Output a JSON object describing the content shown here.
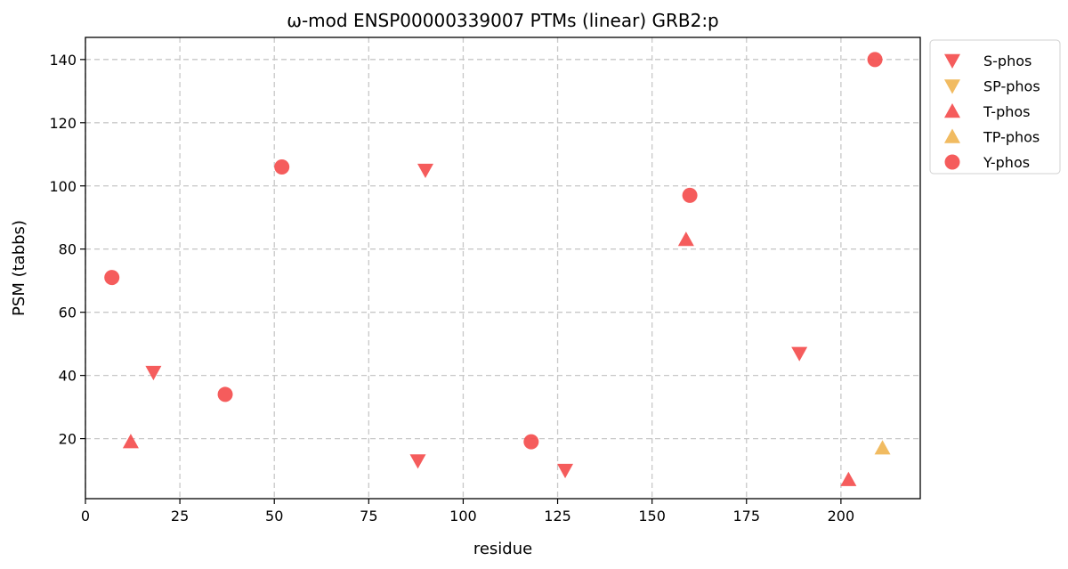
{
  "chart_data": {
    "type": "scatter",
    "title": "ω-mod ENSP00000339007 PTMs (linear) GRB2:p",
    "xlabel": "residue",
    "ylabel": "PSM (tabbs)",
    "xlim": [
      0,
      221
    ],
    "ylim": [
      1,
      147
    ],
    "x_ticks": [
      0,
      25,
      50,
      75,
      100,
      125,
      150,
      175,
      200
    ],
    "y_ticks": [
      20,
      40,
      60,
      80,
      100,
      120,
      140
    ],
    "grid": true,
    "legend_position": "outside-top-right",
    "series": [
      {
        "name": "S-phos",
        "marker": "triangle-down",
        "color": "#f44a4a",
        "points": [
          [
            18,
            41
          ],
          [
            88,
            13
          ],
          [
            90,
            105
          ],
          [
            127,
            10
          ],
          [
            189,
            47
          ]
        ]
      },
      {
        "name": "SP-phos",
        "marker": "triangle-down",
        "color": "#f0b450",
        "points": []
      },
      {
        "name": "T-phos",
        "marker": "triangle-up",
        "color": "#f44a4a",
        "points": [
          [
            12,
            19
          ],
          [
            159,
            83
          ],
          [
            202,
            7
          ]
        ]
      },
      {
        "name": "TP-phos",
        "marker": "triangle-up",
        "color": "#f0b450",
        "points": [
          [
            211,
            17
          ]
        ]
      },
      {
        "name": "Y-phos",
        "marker": "circle",
        "color": "#f44a4a",
        "points": [
          [
            7,
            71
          ],
          [
            37,
            34
          ],
          [
            52,
            106
          ],
          [
            118,
            19
          ],
          [
            160,
            97
          ],
          [
            209,
            140
          ]
        ]
      }
    ]
  }
}
